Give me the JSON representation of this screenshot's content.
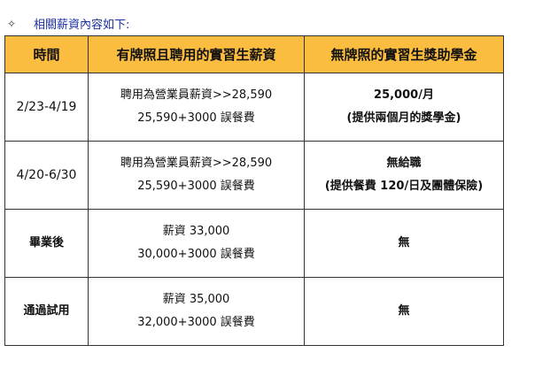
{
  "heading": {
    "bullet_icon": "diamond-outline-icon",
    "text": "相關薪資內容如下:"
  },
  "table": {
    "header_bg": "#fbbd3f",
    "headers": [
      "時間",
      "有牌照且聘用的實習生薪資",
      "無牌照的實習生獎助學金"
    ],
    "rows": [
      {
        "time": "2/23-4/19",
        "licensed": [
          "聘用為營業員薪資>>28,590",
          "25,590+3000 誤餐費"
        ],
        "unlicensed": [
          "25,000/月",
          "(提供兩個月的獎學金)"
        ]
      },
      {
        "time": "4/20-6/30",
        "licensed": [
          "聘用為營業員薪資>>28,590",
          "25,590+3000 誤餐費"
        ],
        "unlicensed": [
          "無給職",
          "(提供餐費 120/日及團體保險)"
        ]
      },
      {
        "time": "畢業後",
        "licensed": [
          "薪資 33,000",
          "30,000+3000 誤餐費"
        ],
        "unlicensed": [
          "無"
        ]
      },
      {
        "time": "通過試用",
        "licensed": [
          "薪資 35,000",
          "32,000+3000 誤餐費"
        ],
        "unlicensed": [
          "無"
        ]
      }
    ]
  }
}
